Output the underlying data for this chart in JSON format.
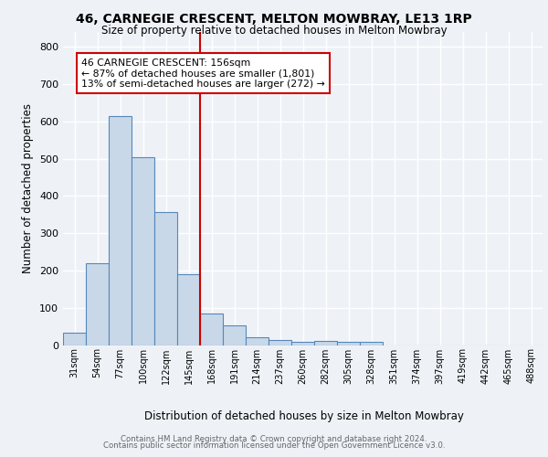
{
  "title1": "46, CARNEGIE CRESCENT, MELTON MOWBRAY, LE13 1RP",
  "title2": "Size of property relative to detached houses in Melton Mowbray",
  "xlabel": "Distribution of detached houses by size in Melton Mowbray",
  "ylabel": "Number of detached properties",
  "bin_labels": [
    "31sqm",
    "54sqm",
    "77sqm",
    "100sqm",
    "122sqm",
    "145sqm",
    "168sqm",
    "191sqm",
    "214sqm",
    "237sqm",
    "260sqm",
    "282sqm",
    "305sqm",
    "328sqm",
    "351sqm",
    "374sqm",
    "397sqm",
    "419sqm",
    "442sqm",
    "465sqm",
    "488sqm"
  ],
  "bar_values": [
    33,
    220,
    615,
    503,
    357,
    190,
    85,
    52,
    22,
    13,
    8,
    10,
    9,
    8,
    0,
    0,
    0,
    0,
    0,
    0,
    0
  ],
  "bar_color": "#c8d8e8",
  "bar_edge_color": "#5588bb",
  "vline_x": 5.5,
  "vline_color": "#cc0000",
  "annotation_text": "46 CARNEGIE CRESCENT: 156sqm\n← 87% of detached houses are smaller (1,801)\n13% of semi-detached houses are larger (272) →",
  "annotation_box_color": "#ffffff",
  "annotation_box_edge": "#cc0000",
  "ylim": [
    0,
    840
  ],
  "yticks": [
    0,
    100,
    200,
    300,
    400,
    500,
    600,
    700,
    800
  ],
  "footer1": "Contains HM Land Registry data © Crown copyright and database right 2024.",
  "footer2": "Contains public sector information licensed under the Open Government Licence v3.0.",
  "bg_color": "#eef2f7",
  "grid_color": "#ffffff"
}
